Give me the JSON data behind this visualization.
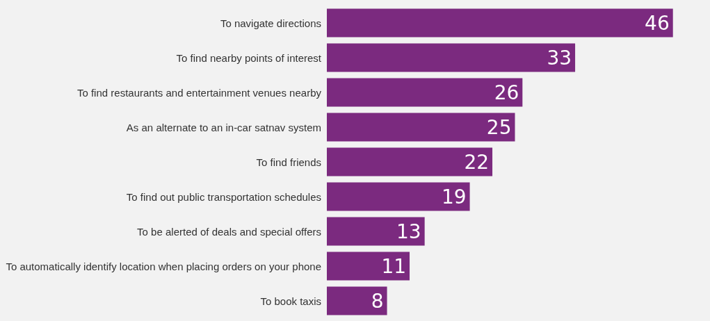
{
  "chart_data": {
    "type": "bar",
    "orientation": "horizontal",
    "categories": [
      "To navigate directions",
      "To find nearby points of interest",
      "To find restaurants and entertainment venues nearby",
      "As an alternate to an in-car satnav system",
      "To find friends",
      "To find out public transportation schedules",
      "To be alerted of deals and special offers",
      "To automatically identify location when placing orders on your phone",
      "To book taxis"
    ],
    "values": [
      46,
      33,
      26,
      25,
      22,
      19,
      13,
      11,
      8
    ],
    "color": "#7b2a7f",
    "data_labels": true
  }
}
